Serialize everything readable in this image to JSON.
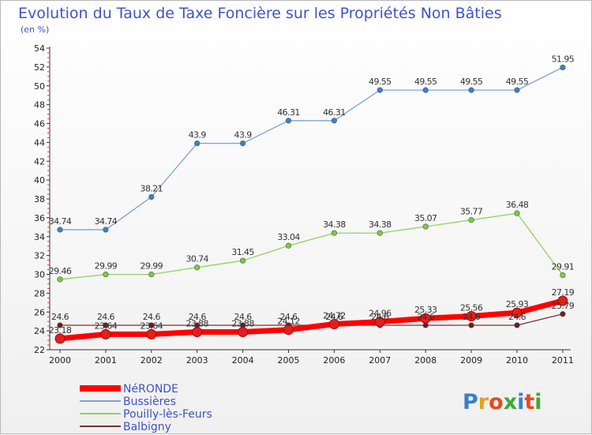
{
  "header": {
    "title": "Evolution du Taux de Taxe Foncière sur les Propriétés Non Bâties",
    "subtitle": "(en %)"
  },
  "logo": {
    "text": "Proxiti",
    "colors": [
      "#3a7fd0",
      "#e8a21f",
      "#e84a1a",
      "#3aaa35",
      "#3a7fd0",
      "#e84a1a",
      "#3aaa35"
    ]
  },
  "chart_data": {
    "type": "line",
    "x": [
      "2000",
      "2001",
      "2002",
      "2003",
      "2004",
      "2005",
      "2006",
      "2007",
      "2008",
      "2009",
      "2010",
      "2011"
    ],
    "ylim": [
      22,
      54
    ],
    "yticks": [
      22,
      24,
      26,
      28,
      30,
      32,
      34,
      36,
      38,
      40,
      42,
      44,
      46,
      48,
      50,
      52,
      54
    ],
    "grid": false,
    "legend_position": "bottom-left",
    "series": [
      {
        "name": "NéRONDE",
        "color": "#ff0000",
        "marker_color": "#e02020",
        "values": [
          23.18,
          23.64,
          23.64,
          23.88,
          23.88,
          24.12,
          24.72,
          24.96,
          25.33,
          25.56,
          25.93,
          27.19
        ]
      },
      {
        "name": "Bussières",
        "color": "#7ba3d8",
        "marker_color": "#3a82c8",
        "values": [
          34.74,
          34.74,
          38.21,
          43.9,
          43.9,
          46.31,
          46.31,
          49.55,
          49.55,
          49.55,
          49.55,
          51.95
        ]
      },
      {
        "name": "Pouilly-lès-Feurs",
        "color": "#8fd45a",
        "marker_color": "#7ccc3a",
        "values": [
          29.46,
          29.99,
          29.99,
          30.74,
          31.45,
          33.04,
          34.38,
          34.38,
          35.07,
          35.77,
          36.48,
          29.91
        ]
      },
      {
        "name": "Balbigny",
        "color": "#7a3035",
        "marker_color": "#6a1e22",
        "values": [
          24.6,
          24.6,
          24.6,
          24.6,
          24.6,
          24.6,
          24.6,
          24.6,
          24.6,
          24.6,
          24.6,
          25.79
        ]
      }
    ]
  }
}
